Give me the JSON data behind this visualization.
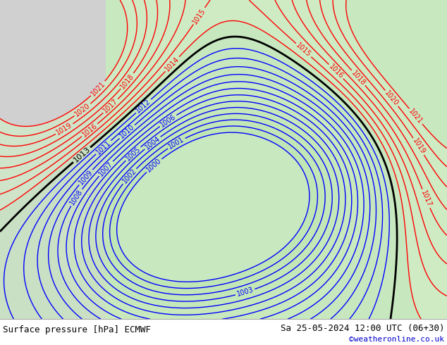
{
  "title_left": "Surface pressure [hPa] ECMWF",
  "title_right": "Sa 25-05-2024 12:00 UTC (06+30)",
  "watermark": "©weatheronline.co.uk",
  "bg_color": "#ffffff",
  "map_bg_color": "#c8e8c0",
  "figsize": [
    6.34,
    4.9
  ],
  "dpi": 100
}
